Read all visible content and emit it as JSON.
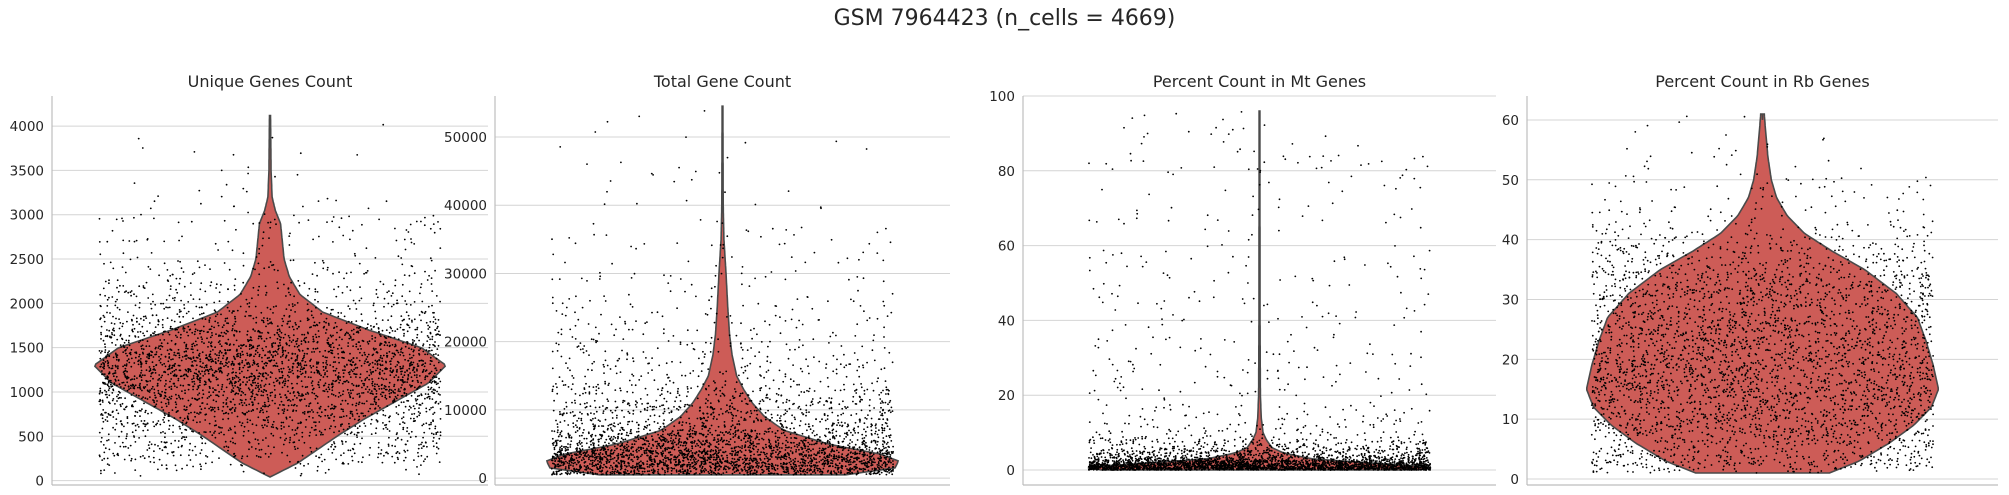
{
  "figure": {
    "title": "GSM 7964423 (n_cells = 4669)"
  },
  "colors": {
    "violin_fill": "#cd5c57",
    "violin_edge": "#4a4a4a",
    "points": "#000000",
    "grid": "#d4d4d4",
    "axis": "#bdbdbd"
  },
  "chart_data": [
    {
      "type": "violin",
      "title": "Unique Genes Count",
      "xlabel": "",
      "ylabel": "",
      "ylim": [
        -50,
        4340
      ],
      "yticks": [
        0,
        500,
        1000,
        1500,
        2000,
        2500,
        3000,
        3500,
        4000
      ],
      "grid": true,
      "legend": "none",
      "n_points": 4669,
      "distribution": {
        "min": 40,
        "max": 4120,
        "median": 1300
      },
      "outline": [
        {
          "y": 40,
          "w": 0.0
        },
        {
          "y": 100,
          "w": 0.06
        },
        {
          "y": 200,
          "w": 0.16
        },
        {
          "y": 350,
          "w": 0.27
        },
        {
          "y": 500,
          "w": 0.38
        },
        {
          "y": 700,
          "w": 0.54
        },
        {
          "y": 900,
          "w": 0.72
        },
        {
          "y": 1100,
          "w": 0.9
        },
        {
          "y": 1300,
          "w": 1.0
        },
        {
          "y": 1500,
          "w": 0.86
        },
        {
          "y": 1700,
          "w": 0.56
        },
        {
          "y": 1900,
          "w": 0.3
        },
        {
          "y": 2100,
          "w": 0.17
        },
        {
          "y": 2300,
          "w": 0.11
        },
        {
          "y": 2500,
          "w": 0.08
        },
        {
          "y": 2700,
          "w": 0.07
        },
        {
          "y": 2900,
          "w": 0.06
        },
        {
          "y": 3050,
          "w": 0.03
        },
        {
          "y": 3200,
          "w": 0.012
        },
        {
          "y": 3500,
          "w": 0.006
        },
        {
          "y": 4120,
          "w": 0.003
        }
      ]
    },
    {
      "type": "violin",
      "title": "Total Gene Count",
      "xlabel": "",
      "ylabel": "",
      "ylim": [
        -1000,
        56000
      ],
      "yticks": [
        0,
        10000,
        20000,
        30000,
        40000,
        50000
      ],
      "grid": true,
      "legend": "none",
      "n_points": 4669,
      "distribution": {
        "min": 500,
        "max": 54500,
        "median": 3000
      },
      "outline": [
        {
          "y": 500,
          "w": 0.7
        },
        {
          "y": 1500,
          "w": 0.98
        },
        {
          "y": 2500,
          "w": 1.0
        },
        {
          "y": 3500,
          "w": 0.9
        },
        {
          "y": 5000,
          "w": 0.6
        },
        {
          "y": 7000,
          "w": 0.35
        },
        {
          "y": 9000,
          "w": 0.24
        },
        {
          "y": 11000,
          "w": 0.17
        },
        {
          "y": 13000,
          "w": 0.12
        },
        {
          "y": 15000,
          "w": 0.08
        },
        {
          "y": 18000,
          "w": 0.055
        },
        {
          "y": 21000,
          "w": 0.04
        },
        {
          "y": 25000,
          "w": 0.03
        },
        {
          "y": 30000,
          "w": 0.02
        },
        {
          "y": 35000,
          "w": 0.008
        },
        {
          "y": 40000,
          "w": 0.004
        },
        {
          "y": 54500,
          "w": 0.002
        }
      ]
    },
    {
      "type": "violin",
      "title": "Percent Count in Mt Genes",
      "xlabel": "",
      "ylabel": "",
      "ylim": [
        -4,
        100
      ],
      "yticks": [
        0,
        20,
        40,
        60,
        80,
        100
      ],
      "grid": true,
      "legend": "none",
      "n_points": 4669,
      "distribution": {
        "min": 0,
        "max": 96,
        "median": 0.8
      },
      "outline": [
        {
          "y": 0.0,
          "w": 0.9
        },
        {
          "y": 0.8,
          "w": 1.0
        },
        {
          "y": 1.8,
          "w": 0.65
        },
        {
          "y": 3.0,
          "w": 0.3
        },
        {
          "y": 4.5,
          "w": 0.14
        },
        {
          "y": 6.0,
          "w": 0.07
        },
        {
          "y": 8.0,
          "w": 0.04
        },
        {
          "y": 10.0,
          "w": 0.02
        },
        {
          "y": 14.0,
          "w": 0.01
        },
        {
          "y": 20.0,
          "w": 0.005
        },
        {
          "y": 40.0,
          "w": 0.003
        },
        {
          "y": 96.0,
          "w": 0.002
        }
      ]
    },
    {
      "type": "violin",
      "title": "Percent Count in Rb Genes",
      "xlabel": "",
      "ylabel": "",
      "ylim": [
        -1,
        64
      ],
      "yticks": [
        0,
        10,
        20,
        30,
        40,
        50,
        60
      ],
      "grid": true,
      "legend": "none",
      "n_points": 4669,
      "distribution": {
        "min": 1,
        "max": 61,
        "median": 22
      },
      "outline": [
        {
          "y": 1,
          "w": 0.38
        },
        {
          "y": 3,
          "w": 0.55
        },
        {
          "y": 6,
          "w": 0.72
        },
        {
          "y": 9,
          "w": 0.86
        },
        {
          "y": 12,
          "w": 0.96
        },
        {
          "y": 15,
          "w": 1.0
        },
        {
          "y": 19,
          "w": 0.97
        },
        {
          "y": 23,
          "w": 0.93
        },
        {
          "y": 27,
          "w": 0.88
        },
        {
          "y": 31,
          "w": 0.76
        },
        {
          "y": 35,
          "w": 0.58
        },
        {
          "y": 38,
          "w": 0.4
        },
        {
          "y": 41,
          "w": 0.24
        },
        {
          "y": 44,
          "w": 0.14
        },
        {
          "y": 47,
          "w": 0.08
        },
        {
          "y": 50,
          "w": 0.05
        },
        {
          "y": 54,
          "w": 0.03
        },
        {
          "y": 58,
          "w": 0.018
        },
        {
          "y": 61,
          "w": 0.01
        }
      ]
    }
  ]
}
